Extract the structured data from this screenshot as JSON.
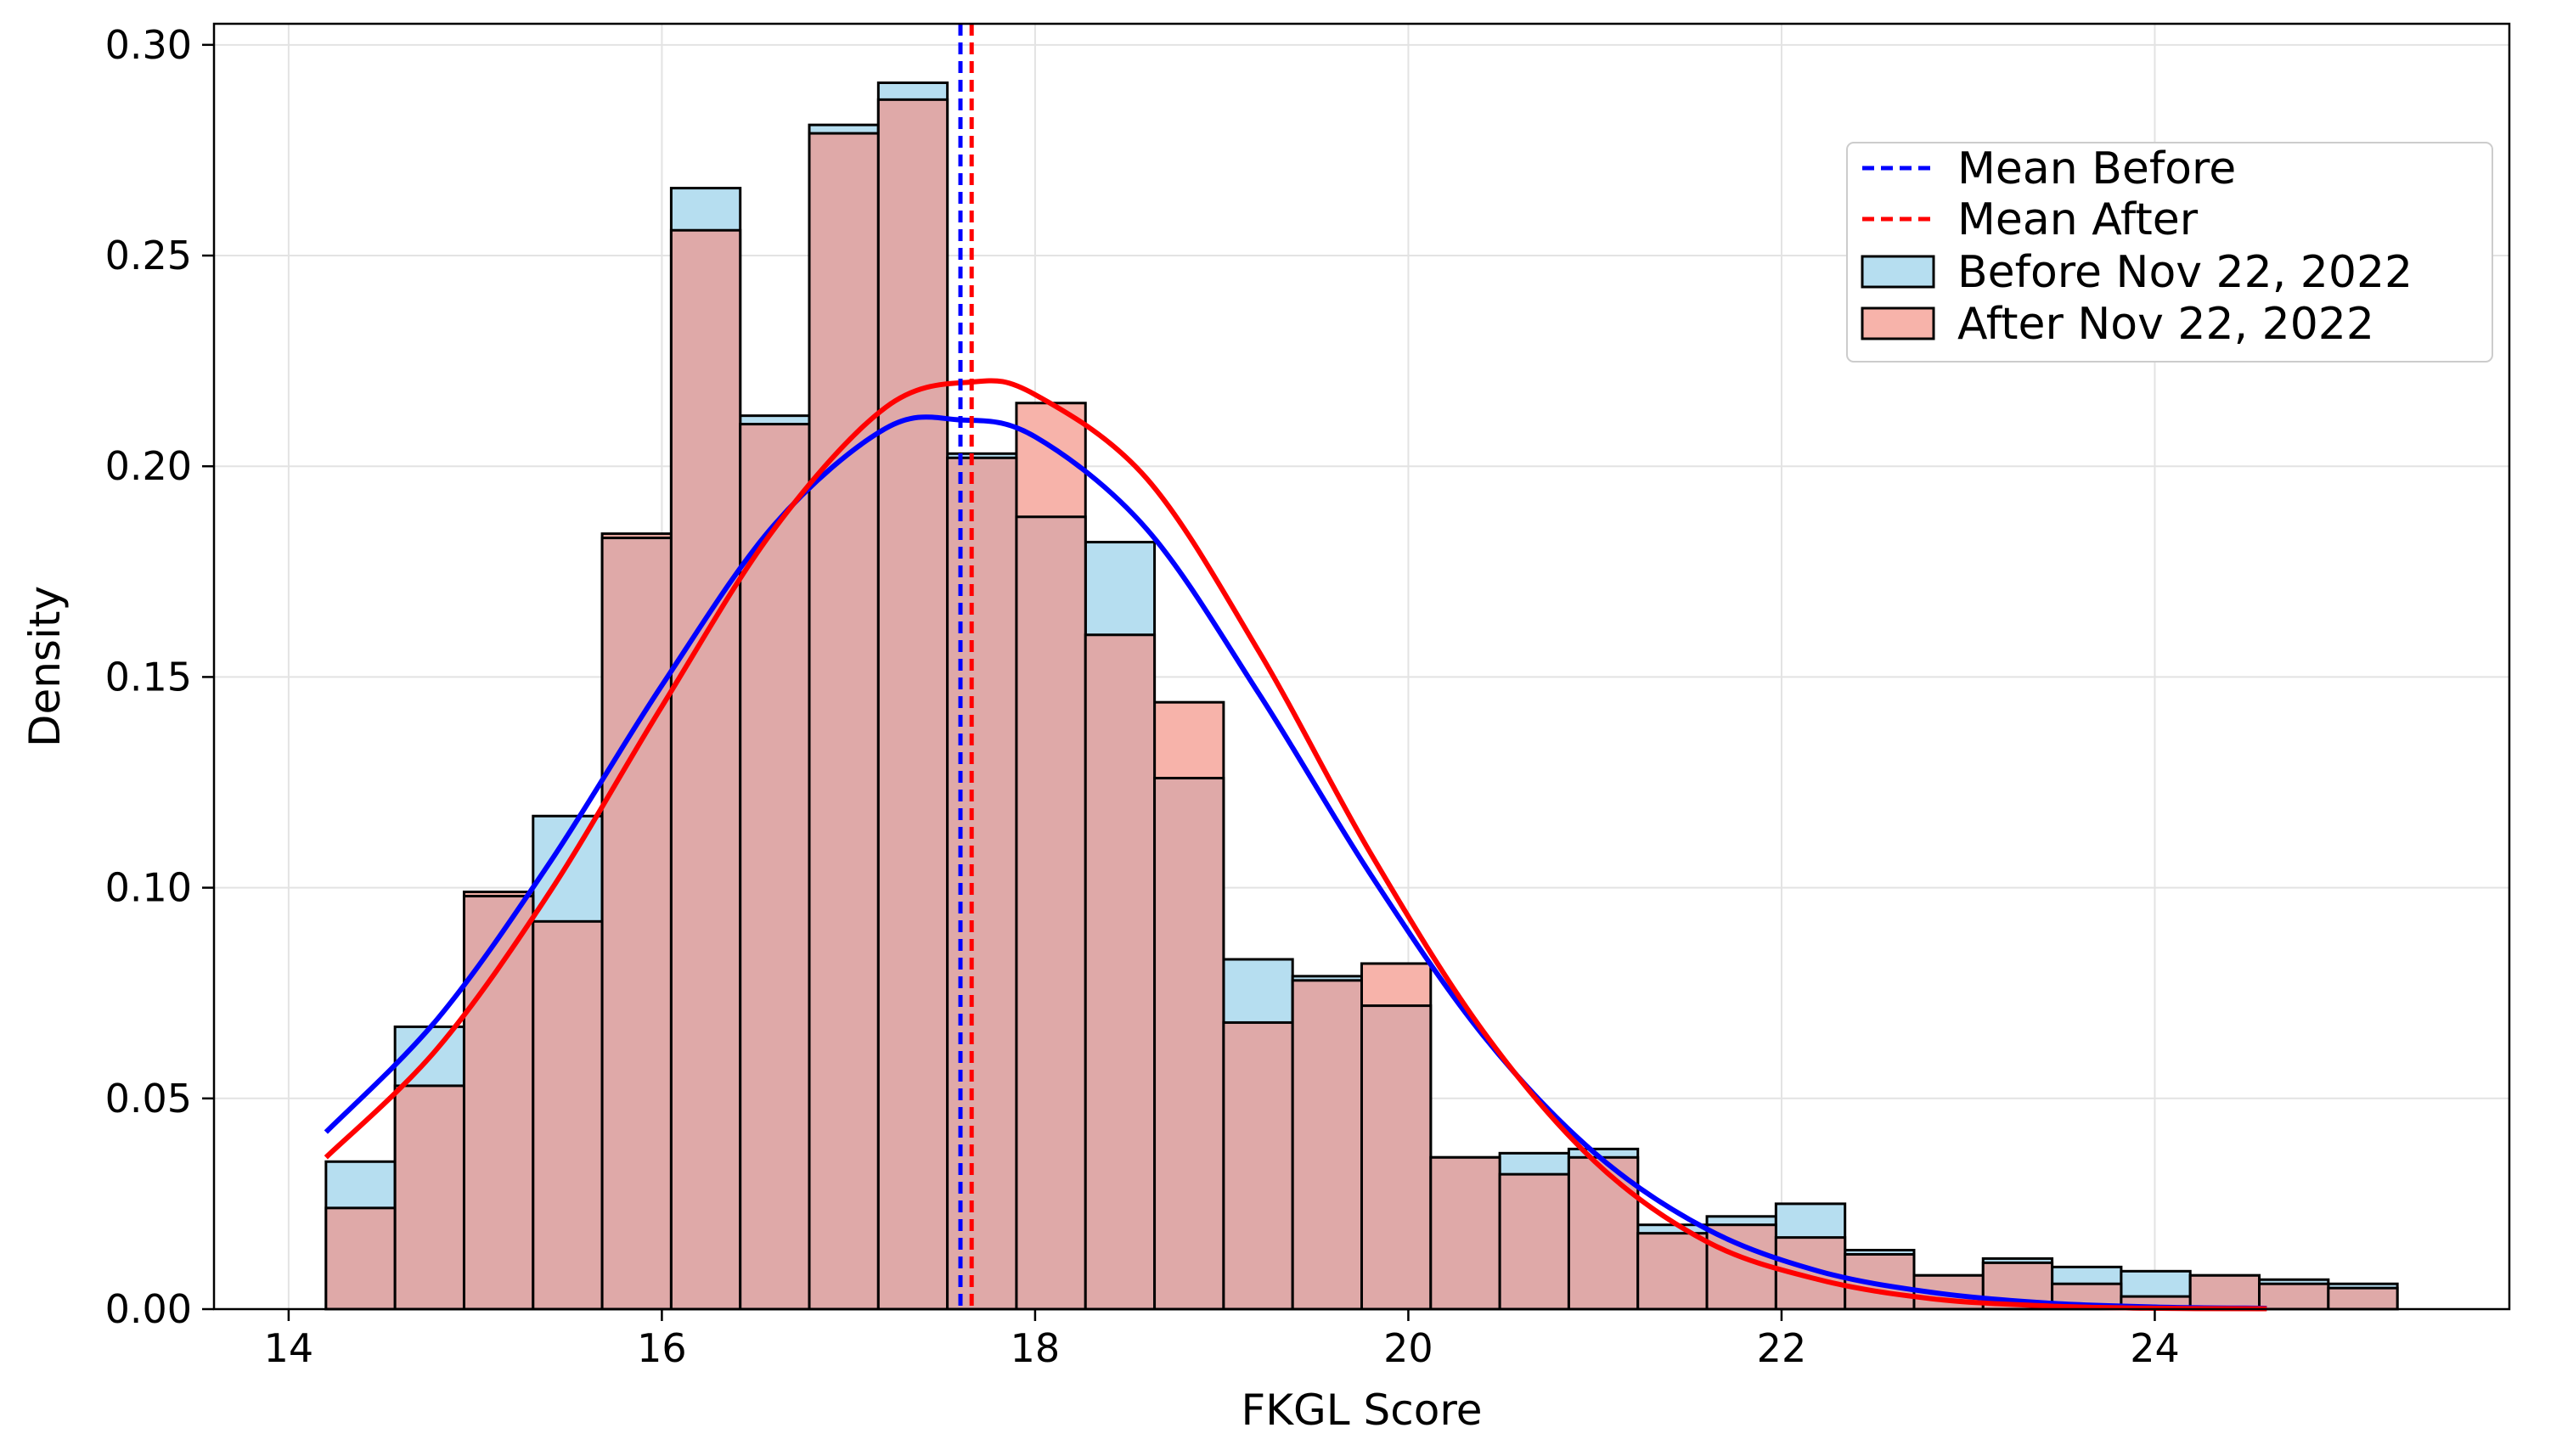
{
  "chart_data": {
    "type": "bar",
    "xlabel": "FKGL Score",
    "ylabel": "Density",
    "xlim": [
      13.6,
      25.9
    ],
    "ylim": [
      0,
      0.305
    ],
    "x_ticks": [
      14,
      16,
      18,
      20,
      22,
      24
    ],
    "y_ticks": [
      0.0,
      0.05,
      0.1,
      0.15,
      0.2,
      0.25,
      0.3
    ],
    "y_tick_labels": [
      "0.00",
      "0.05",
      "0.10",
      "0.15",
      "0.20",
      "0.25",
      "0.30"
    ],
    "grid": true,
    "legend_position": "top-right",
    "bin_start": 14.2,
    "bin_width": 0.37,
    "series": [
      {
        "name": "Before Nov 22, 2022",
        "kind": "histogram",
        "color": "#87CEEB",
        "values": [
          0.035,
          0.067,
          0.098,
          0.117,
          0.183,
          0.266,
          0.212,
          0.281,
          0.291,
          0.203,
          0.188,
          0.182,
          0.126,
          0.083,
          0.079,
          0.072,
          0.036,
          0.037,
          0.038,
          0.02,
          0.022,
          0.025,
          0.014,
          0.008,
          0.012,
          0.01,
          0.009,
          0.008,
          0.007,
          0.006
        ]
      },
      {
        "name": "After Nov 22, 2022",
        "kind": "histogram",
        "color": "#FA8072",
        "values": [
          0.024,
          0.053,
          0.099,
          0.092,
          0.184,
          0.256,
          0.21,
          0.279,
          0.287,
          0.202,
          0.215,
          0.16,
          0.144,
          0.068,
          0.078,
          0.082,
          0.036,
          0.032,
          0.036,
          0.018,
          0.02,
          0.017,
          0.013,
          0.008,
          0.011,
          0.006,
          0.003,
          0.008,
          0.006,
          0.005
        ]
      },
      {
        "name": "Mean Before",
        "kind": "vline",
        "color": "#0000ff",
        "x": 17.6
      },
      {
        "name": "Mean After",
        "kind": "vline",
        "color": "#ff0000",
        "x": 17.66
      }
    ],
    "fit_curves": [
      {
        "color": "#0000ff",
        "x": [
          14.2,
          14.8,
          15.4,
          16.0,
          16.6,
          17.2,
          17.6,
          18.0,
          18.6,
          19.2,
          19.8,
          20.4,
          21.0,
          21.6,
          22.2,
          22.8,
          23.4,
          24.0,
          24.6
        ],
        "y": [
          0.042,
          0.069,
          0.106,
          0.148,
          0.186,
          0.209,
          0.211,
          0.207,
          0.185,
          0.146,
          0.103,
          0.065,
          0.037,
          0.019,
          0.009,
          0.004,
          0.0015,
          0.0005,
          0.0002
        ]
      },
      {
        "color": "#ff0000",
        "x": [
          14.2,
          14.8,
          15.4,
          16.0,
          16.6,
          17.2,
          17.66,
          18.0,
          18.6,
          19.2,
          19.8,
          20.4,
          21.0,
          21.6,
          22.2,
          22.8,
          23.4,
          24.0,
          24.6
        ],
        "y": [
          0.036,
          0.062,
          0.099,
          0.143,
          0.185,
          0.214,
          0.22,
          0.217,
          0.197,
          0.156,
          0.108,
          0.066,
          0.035,
          0.016,
          0.007,
          0.0025,
          0.0008,
          0.0002,
          0.0001
        ]
      }
    ]
  }
}
